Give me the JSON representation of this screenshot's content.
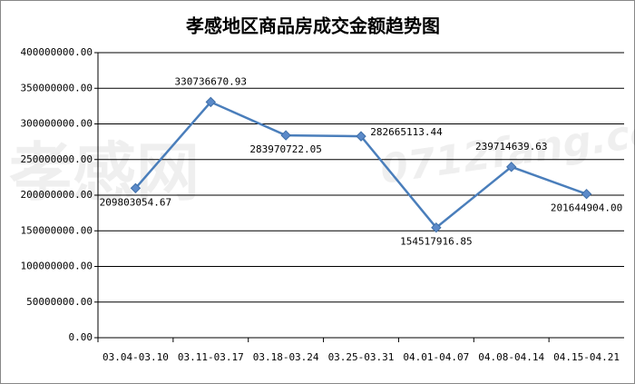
{
  "chart_data": {
    "type": "line",
    "title": "孝感地区商品房成交金额趋势图",
    "watermark": [
      "孝感网",
      "0712fang.com"
    ],
    "categories": [
      "03.04-03.10",
      "03.11-03.17",
      "03.18-03.24",
      "03.25-03.31",
      "04.01-04.07",
      "04.08-04.14",
      "04.15-04.21"
    ],
    "series": [
      {
        "name": "成交金额",
        "color": "#4a7ebb",
        "values": [
          209803054.67,
          330736670.93,
          283970722.05,
          282665113.44,
          154517916.85,
          239714639.63,
          201644904.0
        ],
        "value_labels": [
          "209803054.67",
          "330736670.93",
          "283970722.05",
          "282665113.44",
          "154517916.85",
          "239714639.63",
          "201644904.00"
        ]
      }
    ],
    "ylim": [
      0,
      400000000
    ],
    "yticks": [
      {
        "value": 0,
        "label": "0.00"
      },
      {
        "value": 50000000,
        "label": "50000000.00"
      },
      {
        "value": 100000000,
        "label": "100000000.00"
      },
      {
        "value": 150000000,
        "label": "150000000.00"
      },
      {
        "value": 200000000,
        "label": "200000000.00"
      },
      {
        "value": 250000000,
        "label": "250000000.00"
      },
      {
        "value": 300000000,
        "label": "300000000.00"
      },
      {
        "value": 350000000,
        "label": "350000000.00"
      },
      {
        "value": 400000000,
        "label": "400000000.00"
      }
    ],
    "grid": true
  }
}
